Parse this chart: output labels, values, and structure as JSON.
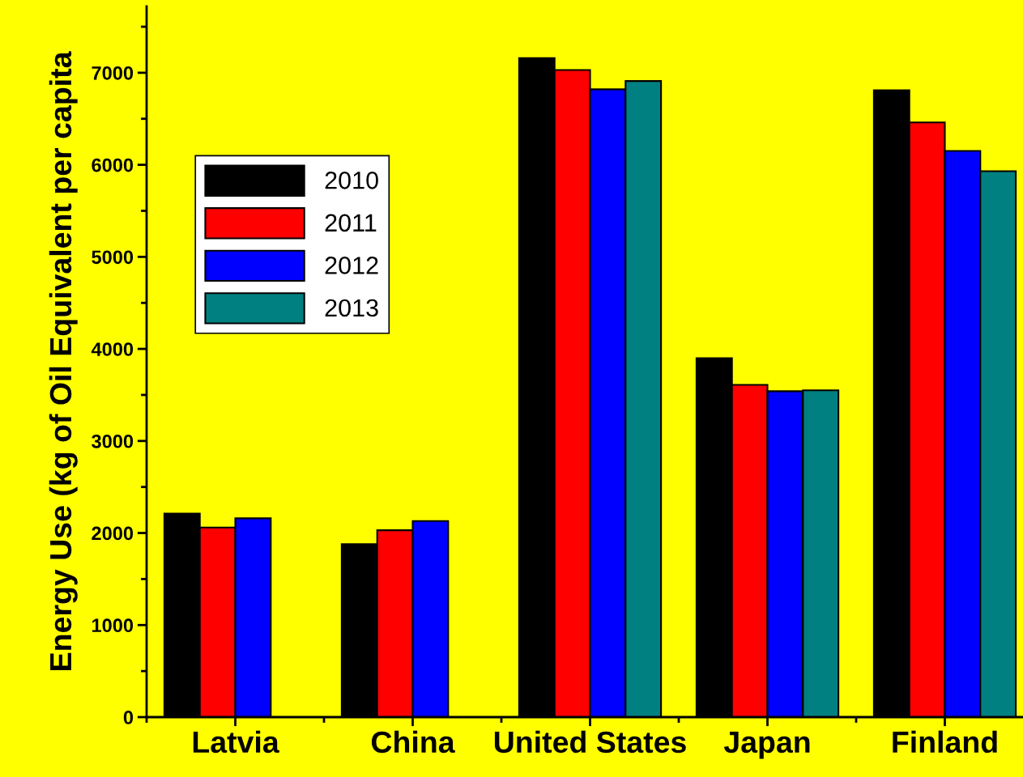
{
  "chart_data": {
    "type": "bar",
    "ylabel": "Energy Use (kg of Oil Equivalent per capita",
    "categories": [
      "Latvia",
      "China",
      "United States",
      "Japan",
      "Finland"
    ],
    "series": [
      {
        "name": "2010",
        "color": "#000000",
        "values": [
          2210,
          1880,
          7160,
          3900,
          6810
        ]
      },
      {
        "name": "2011",
        "color": "#ff0000",
        "values": [
          2060,
          2030,
          7030,
          3610,
          6460
        ]
      },
      {
        "name": "2012",
        "color": "#0000ff",
        "values": [
          2160,
          2130,
          6820,
          3540,
          6150
        ]
      },
      {
        "name": "2013",
        "color": "#008080",
        "values": [
          null,
          null,
          6910,
          3550,
          5930
        ]
      }
    ],
    "ylim": [
      0,
      7720
    ],
    "yticks": [
      0,
      1000,
      2000,
      3000,
      4000,
      5000,
      6000,
      7000
    ],
    "grid": false,
    "legend": "top left"
  }
}
